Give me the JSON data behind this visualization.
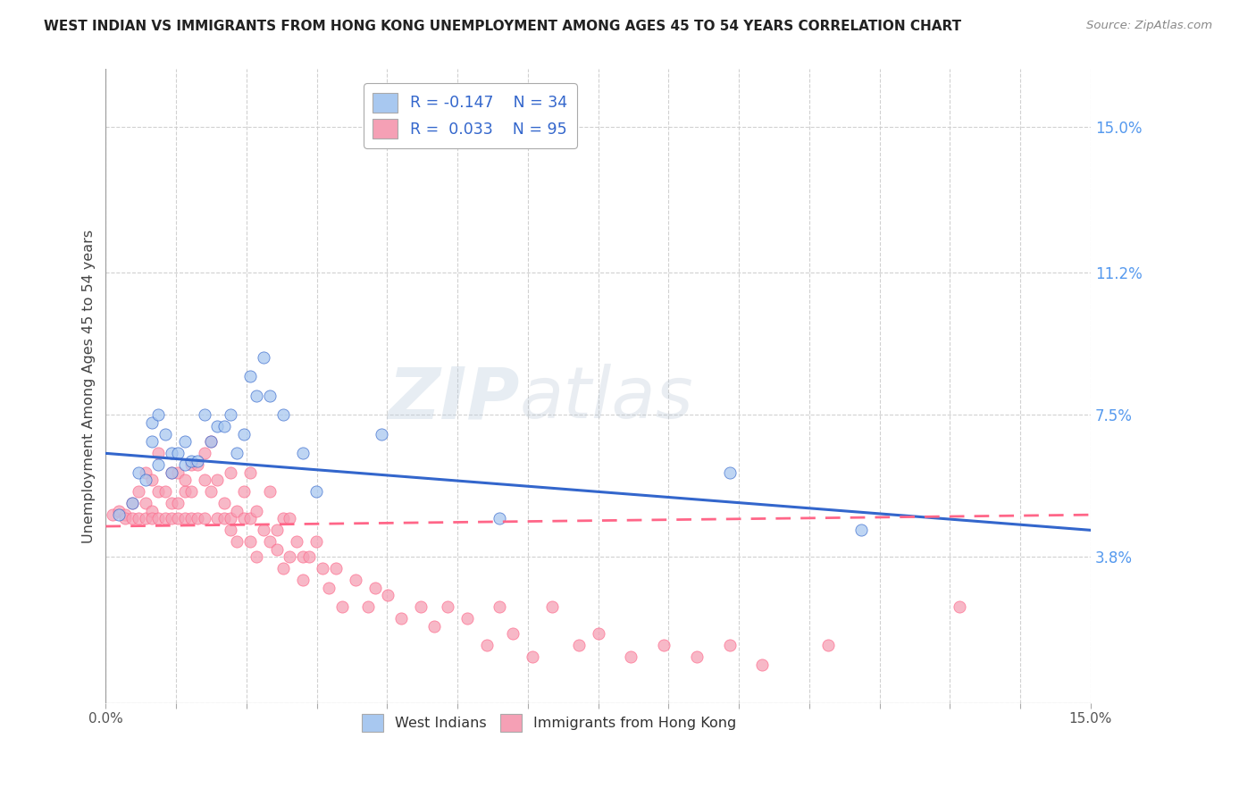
{
  "title": "WEST INDIAN VS IMMIGRANTS FROM HONG KONG UNEMPLOYMENT AMONG AGES 45 TO 54 YEARS CORRELATION CHART",
  "source": "Source: ZipAtlas.com",
  "ylabel": "Unemployment Among Ages 45 to 54 years",
  "xlim": [
    0.0,
    0.15
  ],
  "ylim": [
    0.0,
    0.165
  ],
  "right_yticks": [
    0.15,
    0.112,
    0.075,
    0.038
  ],
  "right_yticklabels": [
    "15.0%",
    "11.2%",
    "7.5%",
    "3.8%"
  ],
  "watermark_zip": "ZIP",
  "watermark_atlas": "atlas",
  "blue_color": "#A8C8F0",
  "pink_color": "#F5A0B5",
  "line_blue": "#3366CC",
  "line_pink": "#FF6688",
  "grid_color": "#CCCCCC",
  "background": "#FFFFFF",
  "west_indians_x": [
    0.002,
    0.004,
    0.005,
    0.006,
    0.007,
    0.007,
    0.008,
    0.008,
    0.009,
    0.01,
    0.01,
    0.011,
    0.012,
    0.012,
    0.013,
    0.014,
    0.015,
    0.016,
    0.017,
    0.018,
    0.019,
    0.02,
    0.021,
    0.022,
    0.023,
    0.024,
    0.025,
    0.027,
    0.03,
    0.032,
    0.042,
    0.06,
    0.095,
    0.115
  ],
  "west_indians_y": [
    0.049,
    0.052,
    0.06,
    0.058,
    0.068,
    0.073,
    0.062,
    0.075,
    0.07,
    0.065,
    0.06,
    0.065,
    0.062,
    0.068,
    0.063,
    0.063,
    0.075,
    0.068,
    0.072,
    0.072,
    0.075,
    0.065,
    0.07,
    0.085,
    0.08,
    0.09,
    0.08,
    0.075,
    0.065,
    0.055,
    0.07,
    0.048,
    0.06,
    0.045
  ],
  "hong_kong_x": [
    0.001,
    0.002,
    0.003,
    0.003,
    0.004,
    0.004,
    0.005,
    0.005,
    0.006,
    0.006,
    0.006,
    0.007,
    0.007,
    0.007,
    0.008,
    0.008,
    0.008,
    0.009,
    0.009,
    0.01,
    0.01,
    0.01,
    0.011,
    0.011,
    0.011,
    0.012,
    0.012,
    0.012,
    0.013,
    0.013,
    0.013,
    0.014,
    0.014,
    0.015,
    0.015,
    0.015,
    0.016,
    0.016,
    0.017,
    0.017,
    0.018,
    0.018,
    0.019,
    0.019,
    0.019,
    0.02,
    0.02,
    0.021,
    0.021,
    0.022,
    0.022,
    0.022,
    0.023,
    0.023,
    0.024,
    0.025,
    0.025,
    0.026,
    0.026,
    0.027,
    0.027,
    0.028,
    0.028,
    0.029,
    0.03,
    0.03,
    0.031,
    0.032,
    0.033,
    0.034,
    0.035,
    0.036,
    0.038,
    0.04,
    0.041,
    0.043,
    0.045,
    0.048,
    0.05,
    0.052,
    0.055,
    0.058,
    0.06,
    0.062,
    0.065,
    0.068,
    0.072,
    0.075,
    0.08,
    0.085,
    0.09,
    0.095,
    0.1,
    0.11,
    0.13
  ],
  "hong_kong_y": [
    0.049,
    0.05,
    0.049,
    0.048,
    0.052,
    0.048,
    0.055,
    0.048,
    0.06,
    0.052,
    0.048,
    0.05,
    0.058,
    0.048,
    0.065,
    0.055,
    0.048,
    0.055,
    0.048,
    0.06,
    0.052,
    0.048,
    0.052,
    0.06,
    0.048,
    0.055,
    0.048,
    0.058,
    0.062,
    0.055,
    0.048,
    0.062,
    0.048,
    0.065,
    0.058,
    0.048,
    0.055,
    0.068,
    0.048,
    0.058,
    0.048,
    0.052,
    0.048,
    0.06,
    0.045,
    0.05,
    0.042,
    0.055,
    0.048,
    0.06,
    0.048,
    0.042,
    0.05,
    0.038,
    0.045,
    0.042,
    0.055,
    0.045,
    0.04,
    0.048,
    0.035,
    0.048,
    0.038,
    0.042,
    0.038,
    0.032,
    0.038,
    0.042,
    0.035,
    0.03,
    0.035,
    0.025,
    0.032,
    0.025,
    0.03,
    0.028,
    0.022,
    0.025,
    0.02,
    0.025,
    0.022,
    0.015,
    0.025,
    0.018,
    0.012,
    0.025,
    0.015,
    0.018,
    0.012,
    0.015,
    0.012,
    0.015,
    0.01,
    0.015,
    0.025
  ],
  "marker_size": 90,
  "alpha": 0.75,
  "wi_trend_x0": 0.0,
  "wi_trend_y0": 0.065,
  "wi_trend_x1": 0.15,
  "wi_trend_y1": 0.045,
  "hk_trend_x0": 0.0,
  "hk_trend_y0": 0.046,
  "hk_trend_x1": 0.15,
  "hk_trend_y1": 0.049
}
